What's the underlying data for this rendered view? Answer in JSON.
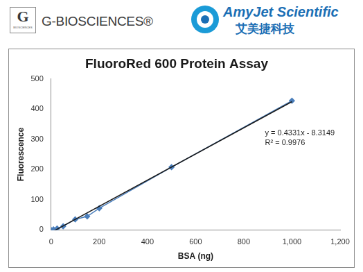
{
  "header": {
    "logo_letter": "G",
    "logo_small": "BIOSCIENCES",
    "brand1": "G-BIOSCIENCES®",
    "brand2": "AmyJet Scientific",
    "brand2_cn": "艾美捷科技"
  },
  "chart_data": {
    "type": "scatter",
    "title": "FluoroRed 600 Protein Assay",
    "x_label": "BSA (ng)",
    "y_label": "Fluorescence",
    "x": [
      0,
      10,
      25,
      50,
      100,
      150,
      200,
      500,
      1000
    ],
    "series": [
      {
        "color": "#4a7ebb",
        "marker": "diamond",
        "line_style": "solid",
        "values": [
          0,
          2,
          5,
          12,
          35,
          45,
          72,
          208,
          428
        ]
      }
    ],
    "trendline": {
      "slope": 0.4331,
      "intercept": -8.3149,
      "color": "#1a1a1a"
    },
    "annotations": [
      "y = 0.4331x - 8.3149",
      "R² = 0.9976"
    ],
    "xlim": [
      0,
      1200
    ],
    "xticks": [
      0,
      200,
      400,
      600,
      800,
      1000,
      1200
    ],
    "ylim": [
      0,
      500
    ],
    "yticks": [
      0,
      100,
      200,
      300,
      400,
      500
    ],
    "grid": false
  }
}
